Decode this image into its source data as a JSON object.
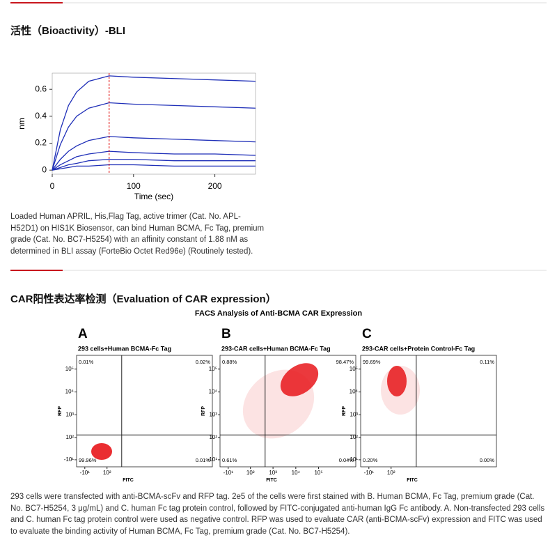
{
  "section_1": {
    "title": "活性（Bioactivity）-BLI",
    "caption": "Loaded Human APRIL, His,Flag Tag, active trimer (Cat. No. APL-H52D1) on HIS1K Biosensor, can bind Human BCMA, Fc Tag, premium grade (Cat. No. BC7-H5254) with an affinity constant of 1.88 nM as determined in BLI assay (ForteBio Octet Red96e) (Routinely tested)."
  },
  "section_2": {
    "title": "CAR阳性表达率检测（Evaluation of CAR expression）",
    "figure_title": "FACS Analysis of Anti-BCMA CAR Expression",
    "caption": "293 cells were transfected with anti-BCMA-scFv and RFP tag. 2e5 of the cells were first stained with B. Human BCMA, Fc Tag, premium grade (Cat. No. BC7-H5254, 3 μg/mL) and C. human Fc tag protein control, followed by FITC-conjugated anti-human IgG Fc antibody. A. Non-transfected 293 cells and C. human Fc tag protein control were used as negative control. RFP was used to evaluate CAR (anti-BCMA-scFv) expression and FITC was used to evaluate the binding activity of Human BCMA, Fc Tag, premium grade (Cat. No. BC7-H5254)."
  },
  "chart_data": [
    {
      "type": "line",
      "xlabel": "Time (sec)",
      "ylabel": "nm",
      "x": [
        0,
        10,
        20,
        30,
        45,
        70,
        100,
        150,
        200,
        250
      ],
      "series": [
        {
          "color": "#1f2fb8",
          "values": [
            0,
            0.3,
            0.48,
            0.58,
            0.66,
            0.7,
            0.69,
            0.68,
            0.67,
            0.66
          ]
        },
        {
          "color": "#1f2fb8",
          "values": [
            0,
            0.19,
            0.32,
            0.4,
            0.46,
            0.5,
            0.49,
            0.48,
            0.47,
            0.46
          ]
        },
        {
          "color": "#1f2fb8",
          "values": [
            0,
            0.08,
            0.14,
            0.18,
            0.22,
            0.25,
            0.24,
            0.23,
            0.22,
            0.21
          ]
        },
        {
          "color": "#1f2fb8",
          "values": [
            0,
            0.04,
            0.07,
            0.1,
            0.12,
            0.14,
            0.13,
            0.12,
            0.12,
            0.11
          ]
        },
        {
          "color": "#1f2fb8",
          "values": [
            0,
            0.02,
            0.04,
            0.05,
            0.07,
            0.08,
            0.08,
            0.07,
            0.07,
            0.07
          ]
        },
        {
          "color": "#1f2fb8",
          "values": [
            0,
            0.01,
            0.02,
            0.03,
            0.03,
            0.04,
            0.04,
            0.03,
            0.03,
            0.03
          ]
        }
      ],
      "xlim": [
        0,
        250
      ],
      "ylim": [
        -0.03,
        0.72
      ],
      "xticks": [
        0,
        100,
        200
      ],
      "yticks": [
        0,
        0.2,
        0.4,
        0.6
      ],
      "vline": 70,
      "vline_color": "#e00000"
    },
    {
      "type": "quadrant",
      "panel": "A",
      "title": "293 cells+Human BCMA-Fc Tag",
      "xlabel": "FITC",
      "ylabel": "RFP",
      "xlim": [
        -43,
        4300000
      ],
      "ylim": [
        -37,
        400000
      ],
      "xticks": [
        {
          "value": -10,
          "label": "-10¹"
        },
        {
          "value": 100,
          "label": "10²"
        }
      ],
      "yticks": [
        {
          "value": -10,
          "label": "-10¹"
        },
        {
          "value": 100,
          "label": "10²"
        },
        {
          "value": 1000,
          "label": "10³"
        },
        {
          "value": 10000,
          "label": "10⁴"
        },
        {
          "value": 100000,
          "label": "10⁵"
        }
      ],
      "gate": [
        450,
        130
      ],
      "quadrant_labels": [
        "0.01%",
        "0.02%",
        "99.96%",
        "0.01%"
      ]
    },
    {
      "type": "quadrant",
      "panel": "B",
      "title": "293-CAR cells+Human BCMA-Fc Tag",
      "xlabel": "FITC",
      "ylabel": "RFP",
      "xlim": [
        -43,
        4300000
      ],
      "ylim": [
        -37,
        400000
      ],
      "xticks": [
        {
          "value": -10,
          "label": "-10¹"
        },
        {
          "value": 100,
          "label": "10²"
        },
        {
          "value": 1000,
          "label": "10³"
        },
        {
          "value": 10000,
          "label": "10⁴"
        },
        {
          "value": 100000,
          "label": "10⁵"
        }
      ],
      "yticks": [
        {
          "value": -10,
          "label": "-10¹"
        },
        {
          "value": 100,
          "label": "10²"
        },
        {
          "value": 1000,
          "label": "10³"
        },
        {
          "value": 10000,
          "label": "10⁴"
        },
        {
          "value": 100000,
          "label": "10⁵"
        }
      ],
      "gate": [
        450,
        130
      ],
      "quadrant_labels": [
        "0.88%",
        "98.47%",
        "0.61%",
        "0.04%"
      ]
    },
    {
      "type": "quadrant",
      "panel": "C",
      "title": "293-CAR cells+Protein Control-Fc Tag",
      "xlabel": "FITC",
      "ylabel": "RFP",
      "xlim": [
        -43,
        4300000
      ],
      "ylim": [
        -37,
        400000
      ],
      "xticks": [
        {
          "value": -10,
          "label": "-10¹"
        },
        {
          "value": 100,
          "label": "10²"
        }
      ],
      "yticks": [
        {
          "value": -10,
          "label": "-10¹"
        },
        {
          "value": 100,
          "label": "10²"
        },
        {
          "value": 1000,
          "label": "10³"
        },
        {
          "value": 10000,
          "label": "10⁴"
        },
        {
          "value": 100000,
          "label": "10⁵"
        }
      ],
      "gate": [
        1300,
        130
      ],
      "quadrant_labels": [
        "99.69%",
        "0.11%",
        "0.20%",
        "0.00%"
      ]
    }
  ]
}
